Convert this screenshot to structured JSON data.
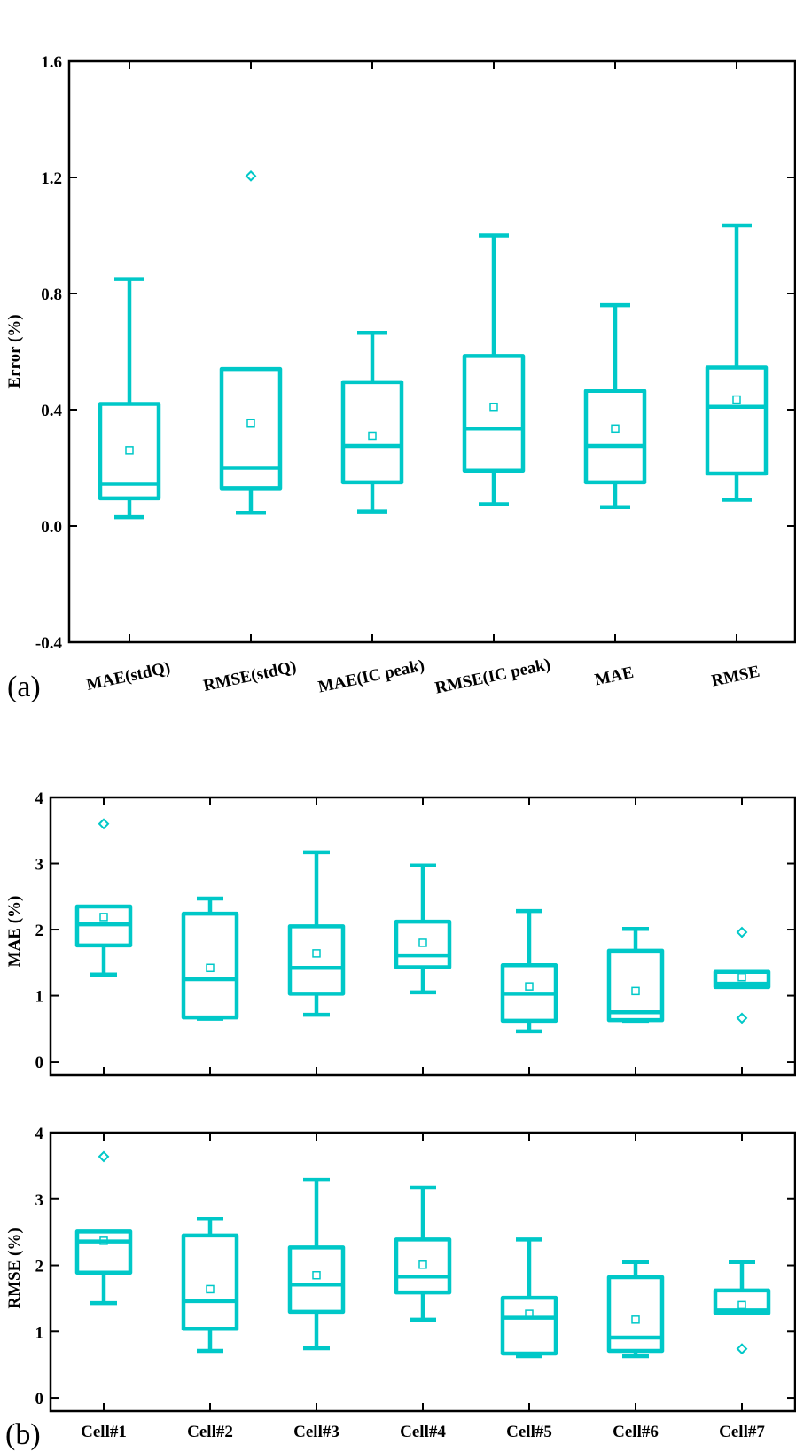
{
  "colors": {
    "box": "#00c8c8",
    "axis": "#000000"
  },
  "chart_data": [
    {
      "type": "box",
      "panel_label": "(a)",
      "ylabel": "Error (%)",
      "xlabel": "",
      "ylim": [
        -0.4,
        1.6
      ],
      "yticks": [
        "-0.4",
        "0.0",
        "0.4",
        "0.8",
        "1.2",
        "1.6"
      ],
      "ytick_values": [
        -0.4,
        0.0,
        0.4,
        0.8,
        1.2,
        1.6
      ],
      "categories": [
        "MAE(stdQ)",
        "RMSE(stdQ)",
        "MAE(IC peak)",
        "RMSE(IC peak)",
        "MAE",
        "RMSE"
      ],
      "boxes": [
        {
          "whisker_low": 0.03,
          "q1": 0.095,
          "median": 0.145,
          "q3": 0.42,
          "whisker_high": 0.85,
          "mean": 0.26,
          "outliers": []
        },
        {
          "whisker_low": 0.045,
          "q1": 0.13,
          "median": 0.2,
          "q3": 0.54,
          "whisker_high": 0.54,
          "mean": 0.355,
          "outliers": [
            1.205
          ]
        },
        {
          "whisker_low": 0.05,
          "q1": 0.15,
          "median": 0.275,
          "q3": 0.495,
          "whisker_high": 0.665,
          "mean": 0.31,
          "outliers": []
        },
        {
          "whisker_low": 0.075,
          "q1": 0.19,
          "median": 0.335,
          "q3": 0.585,
          "whisker_high": 1.0,
          "mean": 0.41,
          "outliers": []
        },
        {
          "whisker_low": 0.065,
          "q1": 0.15,
          "median": 0.275,
          "q3": 0.465,
          "whisker_high": 0.76,
          "mean": 0.335,
          "outliers": []
        },
        {
          "whisker_low": 0.09,
          "q1": 0.18,
          "median": 0.41,
          "q3": 0.545,
          "whisker_high": 1.035,
          "mean": 0.435,
          "outliers": []
        }
      ],
      "grid": false,
      "legend": "none"
    },
    {
      "type": "box",
      "panel_label": "",
      "ylabel": "MAE (%)",
      "xlabel": "",
      "ylim": [
        -0.2,
        4.0
      ],
      "yticks": [
        "0",
        "1",
        "2",
        "3",
        "4"
      ],
      "ytick_values": [
        0,
        1,
        2,
        3,
        4
      ],
      "categories": [
        "Cell#1",
        "Cell#2",
        "Cell#3",
        "Cell#4",
        "Cell#5",
        "Cell#6",
        "Cell#7"
      ],
      "show_category_labels": false,
      "boxes": [
        {
          "whisker_low": 1.32,
          "q1": 1.76,
          "median": 2.08,
          "q3": 2.35,
          "whisker_high": 2.35,
          "mean": 2.19,
          "outliers": [
            3.6
          ]
        },
        {
          "whisker_low": 0.65,
          "q1": 0.67,
          "median": 1.25,
          "q3": 2.24,
          "whisker_high": 2.47,
          "mean": 1.42,
          "outliers": []
        },
        {
          "whisker_low": 0.71,
          "q1": 1.03,
          "median": 1.42,
          "q3": 2.05,
          "whisker_high": 3.17,
          "mean": 1.64,
          "outliers": []
        },
        {
          "whisker_low": 1.05,
          "q1": 1.43,
          "median": 1.61,
          "q3": 2.12,
          "whisker_high": 2.97,
          "mean": 1.8,
          "outliers": []
        },
        {
          "whisker_low": 0.46,
          "q1": 0.62,
          "median": 1.03,
          "q3": 1.46,
          "whisker_high": 2.28,
          "mean": 1.14,
          "outliers": []
        },
        {
          "whisker_low": 0.62,
          "q1": 0.63,
          "median": 0.75,
          "q3": 1.68,
          "whisker_high": 2.01,
          "mean": 1.07,
          "outliers": []
        },
        {
          "whisker_low": 1.13,
          "q1": 1.13,
          "median": 1.18,
          "q3": 1.36,
          "whisker_high": 1.36,
          "mean": 1.28,
          "outliers": [
            1.96,
            0.66
          ]
        }
      ],
      "grid": false,
      "legend": "none"
    },
    {
      "type": "box",
      "panel_label": "(b)",
      "ylabel": "RMSE (%)",
      "xlabel": "",
      "ylim": [
        -0.2,
        4.0
      ],
      "yticks": [
        "0",
        "1",
        "2",
        "3",
        "4"
      ],
      "ytick_values": [
        0,
        1,
        2,
        3,
        4
      ],
      "categories": [
        "Cell#1",
        "Cell#2",
        "Cell#3",
        "Cell#4",
        "Cell#5",
        "Cell#6",
        "Cell#7"
      ],
      "show_category_labels": true,
      "boxes": [
        {
          "whisker_low": 1.43,
          "q1": 1.89,
          "median": 2.36,
          "q3": 2.51,
          "whisker_high": 2.51,
          "mean": 2.37,
          "outliers": [
            3.64
          ]
        },
        {
          "whisker_low": 0.71,
          "q1": 1.04,
          "median": 1.46,
          "q3": 2.45,
          "whisker_high": 2.7,
          "mean": 1.64,
          "outliers": []
        },
        {
          "whisker_low": 0.75,
          "q1": 1.3,
          "median": 1.71,
          "q3": 2.27,
          "whisker_high": 3.29,
          "mean": 1.85,
          "outliers": []
        },
        {
          "whisker_low": 1.18,
          "q1": 1.59,
          "median": 1.83,
          "q3": 2.39,
          "whisker_high": 3.17,
          "mean": 2.01,
          "outliers": []
        },
        {
          "whisker_low": 0.63,
          "q1": 0.67,
          "median": 1.21,
          "q3": 1.51,
          "whisker_high": 2.39,
          "mean": 1.27,
          "outliers": []
        },
        {
          "whisker_low": 0.63,
          "q1": 0.71,
          "median": 0.91,
          "q3": 1.82,
          "whisker_high": 2.05,
          "mean": 1.18,
          "outliers": []
        },
        {
          "whisker_low": 1.28,
          "q1": 1.28,
          "median": 1.32,
          "q3": 1.62,
          "whisker_high": 2.05,
          "mean": 1.4,
          "outliers": [
            0.74
          ]
        }
      ],
      "grid": false,
      "legend": "none"
    }
  ]
}
